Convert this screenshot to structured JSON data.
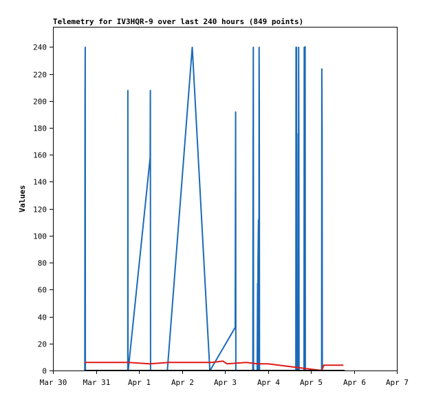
{
  "chart_data": {
    "type": "line",
    "title": "Telemetry for IV3HQR-9 over last 240 hours (849 points)",
    "xlabel": "",
    "ylabel": "Values",
    "x_tick_labels": [
      "Mar 30",
      "Mar 31",
      "Apr 1",
      "Apr 2",
      "Apr 3",
      "Apr 4",
      "Apr 5",
      "Apr 6",
      "Apr 7"
    ],
    "x_range": [
      "Mar 30 00:00",
      "Apr 7 00:00"
    ],
    "y_ticks": [
      0,
      20,
      40,
      60,
      80,
      100,
      120,
      140,
      160,
      180,
      200,
      220,
      240
    ],
    "ylim": [
      0,
      255
    ],
    "grid": false,
    "colors": {
      "blue": "#1a6ab8",
      "red": "#e01818",
      "black": "#000000"
    },
    "series": [
      {
        "color": "#1a6ab8",
        "x_days": [
          0.74,
          0.745,
          0.75,
          0.753,
          0.755,
          1.74,
          1.743,
          1.745,
          1.75,
          2.26,
          2.265,
          2.27,
          2.28,
          2.66,
          3.24,
          3.65,
          3.655,
          4.24,
          4.245,
          4.25,
          4.255,
          4.26,
          4.65,
          4.655,
          4.66,
          4.665,
          4.75,
          4.76,
          4.765,
          4.77,
          4.78,
          4.79,
          4.795,
          4.8,
          4.805,
          4.81,
          4.82,
          4.825,
          4.83,
          4.835,
          4.84,
          5.65,
          5.655,
          5.66,
          5.665,
          5.67,
          5.675,
          5.68,
          5.685,
          5.69,
          5.7,
          5.705,
          5.71,
          5.715,
          5.72,
          5.725,
          5.73,
          5.84,
          5.845,
          5.85,
          5.855,
          5.86,
          5.865,
          5.87,
          5.875,
          5.88,
          5.885,
          6.25,
          6.255,
          6.26,
          6.265,
          6.27,
          6.275,
          6.28,
          6.285,
          6.29,
          6.295,
          6.3,
          6.305,
          6.31,
          6.74,
          6.745,
          6.75,
          6.755,
          6.76,
          6.765,
          6.77,
          6.775
        ],
        "values": [
          0,
          192,
          240,
          0,
          0,
          0,
          208,
          0,
          0,
          158,
          208,
          0,
          0,
          0,
          240,
          0,
          0,
          32,
          128,
          192,
          0,
          0,
          0,
          145,
          240,
          0,
          0,
          65,
          0,
          80,
          112,
          0,
          240,
          200,
          0,
          0,
          0,
          0,
          0,
          0,
          0,
          0,
          240,
          0,
          240,
          0,
          0,
          0,
          0,
          0,
          15,
          176,
          0,
          240,
          177,
          0,
          0,
          0,
          240,
          0,
          0,
          240,
          240,
          0,
          0,
          0,
          0,
          0,
          224,
          177,
          0,
          0,
          0,
          0,
          0,
          0,
          0,
          0,
          0,
          0,
          0,
          0,
          0,
          0,
          0,
          0,
          0,
          0
        ]
      },
      {
        "color": "#e01818",
        "x_days": [
          0.74,
          1.75,
          2.25,
          2.7,
          3.25,
          3.7,
          3.95,
          4.05,
          4.5,
          4.75,
          5.0,
          6.25,
          6.3,
          6.75
        ],
        "values": [
          6,
          6,
          5,
          6,
          6,
          6,
          7,
          5,
          6,
          5,
          5,
          0,
          4,
          4
        ]
      },
      {
        "color": "#000000",
        "x_days": [
          0.74,
          6.78
        ],
        "values": [
          0,
          0
        ]
      }
    ]
  }
}
